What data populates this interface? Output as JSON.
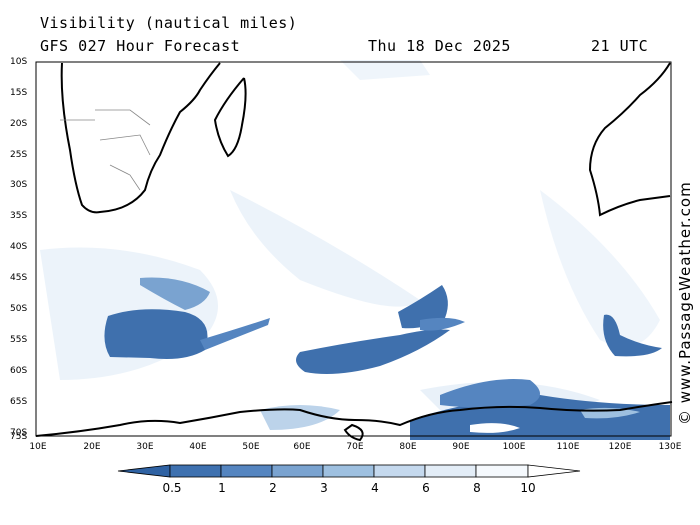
{
  "header": {
    "title": "Visibility (nautical miles)",
    "subtitle": "GFS 027 Hour Forecast",
    "date": "Thu 18 Dec 2025",
    "time": "21 UTC"
  },
  "map": {
    "lat_labels": [
      "10S",
      "15S",
      "20S",
      "25S",
      "30S",
      "35S",
      "40S",
      "45S",
      "50S",
      "55S",
      "60S",
      "65S",
      "70S",
      "75S"
    ],
    "lon_labels": [
      "10E",
      "20E",
      "30E",
      "40E",
      "50E",
      "60E",
      "70E",
      "80E",
      "90E",
      "100E",
      "110E",
      "120E",
      "130E"
    ],
    "credit": "© www.PassageWeather.com",
    "colors": {
      "fog": "#3f70ad",
      "light_haze": "#dce8f4",
      "coast": "#000000"
    }
  },
  "colorbar": {
    "labels": [
      "0.5",
      "1",
      "2",
      "3",
      "4",
      "6",
      "8",
      "10"
    ],
    "colors": [
      "#2f62a3",
      "#3e71b0",
      "#5585c0",
      "#7aa3d0",
      "#9ec0e0",
      "#c5d9ee",
      "#e3edf7",
      "#f5f9fd"
    ]
  }
}
